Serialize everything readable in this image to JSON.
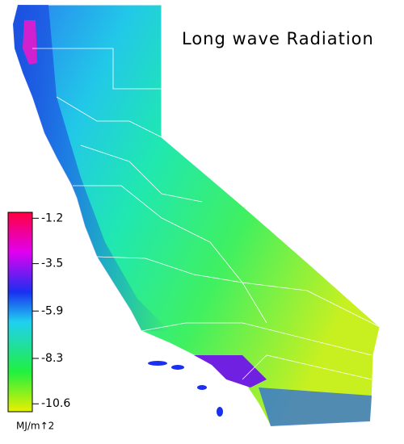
{
  "map": {
    "title": "Long wave Radiation",
    "colorbar": {
      "lim": [
        -11.0,
        -0.9
      ],
      "ticks": [
        -1.2,
        -3.5,
        -5.9,
        -8.3,
        -10.6
      ],
      "unit": "MJ/m↑2"
    }
  }
}
